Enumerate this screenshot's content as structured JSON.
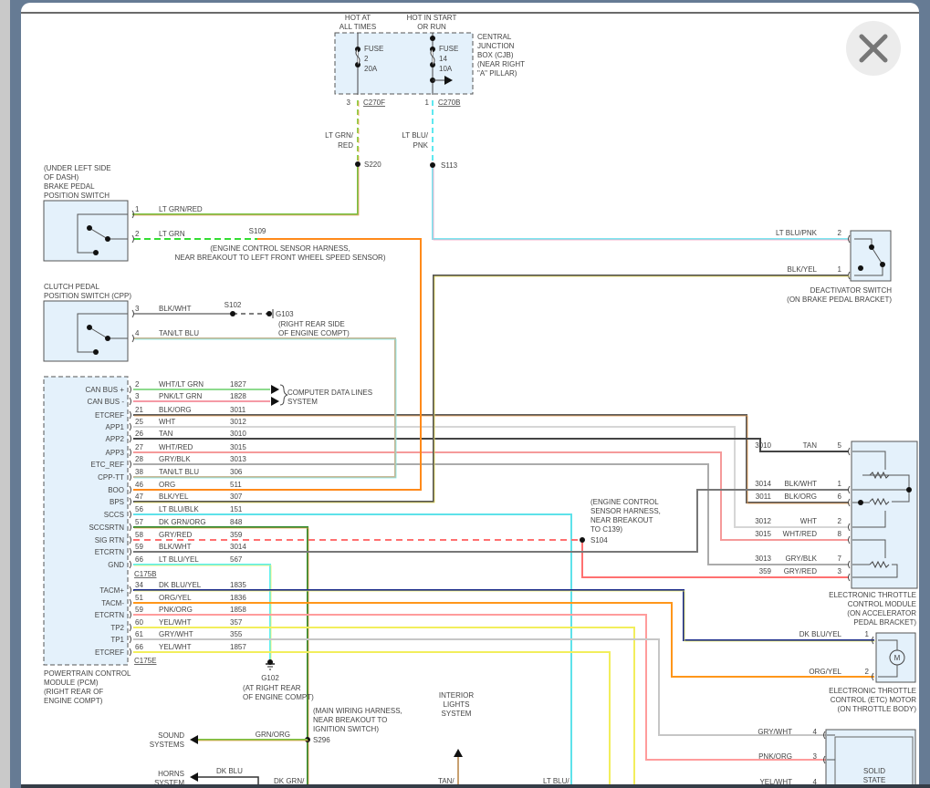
{
  "window": {
    "close_icon": "close-icon"
  },
  "cjb": {
    "hot_always": [
      "HOT AT",
      "ALL TIMES"
    ],
    "hot_start_run": [
      "HOT IN START",
      "OR RUN"
    ],
    "fuse_a": [
      "FUSE",
      "2",
      "20A"
    ],
    "fuse_b": [
      "FUSE",
      "14",
      "10A"
    ],
    "name": [
      "CENTRAL",
      "JUNCTION",
      "BOX (CJB)",
      "(NEAR RIGHT",
      "\"A\" PILLAR)"
    ],
    "conn_a_pin": "3",
    "conn_a": "C270F",
    "conn_b_pin": "1",
    "conn_b": "C270B",
    "wire_a": [
      "LT GRN/",
      "RED"
    ],
    "splice_a": "S220",
    "wire_b": [
      "LT BLU/",
      "PNK"
    ],
    "splice_b": "S113"
  },
  "brake_switch": {
    "name": [
      "(UNDER LEFT SIDE",
      "OF DASH)",
      "BRAKE PEDAL",
      "POSITION SWITCH"
    ],
    "pin1": "1",
    "wire1": "LT GRN/RED",
    "pin2": "2",
    "wire2": "LT GRN",
    "splice": "S109",
    "note": [
      "(ENGINE CONTROL SENSOR HARNESS,",
      "NEAR BREAKOUT TO LEFT FRONT WHEEL SPEED SENSOR)"
    ]
  },
  "clutch_switch": {
    "name": [
      "CLUTCH PEDAL",
      "POSITION SWITCH (CPP)"
    ],
    "pin3": "3",
    "wire3": "BLK/WHT",
    "splice": "S102",
    "ground": "G103",
    "ground_note": [
      "(RIGHT REAR SIDE",
      "OF ENGINE COMPT)"
    ],
    "pin4": "4",
    "wire4": "TAN/LT BLU"
  },
  "deactivator": {
    "name": [
      "DEACTIVATOR SWITCH",
      "(ON BRAKE PEDAL BRACKET)"
    ],
    "pins": [
      {
        "pin": "2",
        "color": "LT BLU/PNK"
      },
      {
        "pin": "1",
        "color": "BLK/YEL"
      }
    ]
  },
  "pcm": {
    "name": [
      "POWERTRAIN CONTROL",
      "MODULE (PCM)",
      "(RIGHT REAR OF",
      "ENGINE COMPT)"
    ],
    "connector_b": "C175B",
    "connector_e": "C175E",
    "pins": [
      {
        "label": "CAN BUS +",
        "pin": "2",
        "color": "WHT/LT GRN",
        "circuit": "1827",
        "hex": "#8edb8e"
      },
      {
        "label": "CAN BUS -",
        "pin": "3",
        "color": "PNK/LT GRN",
        "circuit": "1828",
        "hex": "#f59aa6"
      },
      {
        "label": "ETCREF",
        "pin": "21",
        "color": "BLK/ORG",
        "circuit": "3011",
        "hex": "#5a5a5a",
        "stripe": "#f0a050"
      },
      {
        "label": "APP1",
        "pin": "25",
        "color": "WHT",
        "circuit": "3012",
        "hex": "#d6d6d6"
      },
      {
        "label": "APP2",
        "pin": "26",
        "color": "TAN",
        "circuit": "3010",
        "hex": "#444444"
      },
      {
        "label": "APP3",
        "pin": "27",
        "color": "WHT/RED",
        "circuit": "3015",
        "hex": "#f59a9a"
      },
      {
        "label": "ETC_REF",
        "pin": "28",
        "color": "GRY/BLK",
        "circuit": "3013",
        "hex": "#ababab"
      },
      {
        "label": "CPP-TT",
        "pin": "38",
        "color": "TAN/LT BLU",
        "circuit": "306",
        "hex": "#c8b896",
        "stripe": "#7de6e6"
      },
      {
        "label": "BOO",
        "pin": "46",
        "color": "ORG",
        "circuit": "511",
        "hex": "#ff8a1a"
      },
      {
        "label": "BPS",
        "pin": "47",
        "color": "BLK/YEL",
        "circuit": "307",
        "hex": "#555555",
        "stripe": "#f0e45a"
      },
      {
        "label": "SCCS",
        "pin": "56",
        "color": "LT BLU/BLK",
        "circuit": "151",
        "hex": "#5ee2ea"
      },
      {
        "label": "SCCSRTN",
        "pin": "57",
        "color": "DK GRN/ORG",
        "circuit": "848",
        "hex": "#2e8b2e",
        "stripe": "#f0a050"
      },
      {
        "label": "SIG RTN",
        "pin": "58",
        "color": "GRY/RED",
        "circuit": "359",
        "hex": "#ff7070"
      },
      {
        "label": "ETCRTN",
        "pin": "59",
        "color": "BLK/WHT",
        "circuit": "3014",
        "hex": "#777777"
      },
      {
        "label": "GND",
        "pin": "66",
        "color": "LT BLU/YEL",
        "circuit": "567",
        "hex": "#5ef0f0",
        "stripe": "#f0f060"
      },
      {
        "label": "TACM+",
        "pin": "34",
        "color": "DK BLU/YEL",
        "circuit": "1835",
        "hex": "#1a2a8a",
        "stripe": "#f0f060"
      },
      {
        "label": "TACM-",
        "pin": "51",
        "color": "ORG/YEL",
        "circuit": "1836",
        "hex": "#ff961a"
      },
      {
        "label": "ETCRTN",
        "pin": "59",
        "color": "PNK/ORG",
        "circuit": "1858",
        "hex": "#ff9c9c"
      },
      {
        "label": "TP2",
        "pin": "60",
        "color": "YEL/WHT",
        "circuit": "357",
        "hex": "#f2ee5c"
      },
      {
        "label": "TP1",
        "pin": "61",
        "color": "GRY/WHT",
        "circuit": "355",
        "hex": "#c6c6c6"
      },
      {
        "label": "ETCREF",
        "pin": "66",
        "color": "YEL/WHT",
        "circuit": "1857",
        "hex": "#f2ee5c"
      }
    ]
  },
  "data_lines": [
    "COMPUTER DATA LINES",
    "SYSTEM"
  ],
  "s104": {
    "note": [
      "(ENGINE CONTROL",
      "SENSOR HARNESS,",
      "NEAR BREAKOUT",
      "TO C139)"
    ],
    "splice": "S104"
  },
  "etc_module": {
    "name": [
      "ELECTRONIC THROTTLE",
      "CONTROL MODULE",
      "(ON ACCELERATOR",
      "PEDAL BRACKET)"
    ],
    "pins": [
      {
        "pin": "5",
        "color": "TAN",
        "circuit": "3010"
      },
      {
        "pin": "1",
        "color": "BLK/WHT",
        "circuit": "3014"
      },
      {
        "pin": "6",
        "color": "BLK/ORG",
        "circuit": "3011"
      },
      {
        "pin": "2",
        "color": "WHT",
        "circuit": "3012"
      },
      {
        "pin": "8",
        "color": "WHT/RED",
        "circuit": "3015"
      },
      {
        "pin": "7",
        "color": "GRY/BLK",
        "circuit": "3013"
      },
      {
        "pin": "3",
        "color": "GRY/RED",
        "circuit": "359"
      }
    ]
  },
  "etc_motor": {
    "name": [
      "ELECTRONIC THROTTLE",
      "CONTROL (ETC) MOTOR",
      "(ON THROTTLE BODY)"
    ],
    "symbol": "M",
    "pins": [
      {
        "pin": "1",
        "color": "DK BLU/YEL"
      },
      {
        "pin": "2",
        "color": "ORG/YEL"
      }
    ]
  },
  "g102": {
    "name": "G102",
    "note": [
      "(AT RIGHT REAR",
      "OF ENGINE COMPT)"
    ]
  },
  "s296": {
    "splice": "S296",
    "note": [
      "(MAIN WIRING HARNESS,",
      "NEAR BREAKOUT TO",
      "IGNITION SWITCH)"
    ]
  },
  "sound": {
    "name": [
      "SOUND",
      "SYSTEMS"
    ],
    "wire": "GRN/ORG"
  },
  "horns": {
    "name": [
      "HORNS",
      "SYSTEM"
    ],
    "wire": "DK BLU"
  },
  "interior": {
    "name": [
      "INTERIOR",
      "LIGHTS",
      "SYSTEM"
    ]
  },
  "bottom_labels": {
    "dk_grn": "DK GRN/",
    "tan": "TAN/",
    "lt_blu": "LT BLU/"
  },
  "solid_state": {
    "name": [
      "SOLID",
      "STATE"
    ],
    "pins": [
      {
        "pin": "4",
        "color": "GRY/WHT"
      },
      {
        "pin": "3",
        "color": "PNK/ORG"
      },
      {
        "pin": "4",
        "color": "YEL/WHT"
      }
    ]
  }
}
